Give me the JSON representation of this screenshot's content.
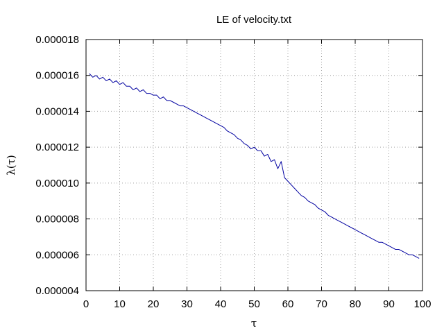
{
  "chart_data": {
    "type": "line",
    "title": "LE of velocity.txt",
    "xlabel": "τ",
    "ylabel": "λ(τ)",
    "xlim": [
      0,
      100
    ],
    "ylim": [
      4e-06,
      1.8e-05
    ],
    "x_ticks": [
      0,
      10,
      20,
      30,
      40,
      50,
      60,
      70,
      80,
      90,
      100
    ],
    "x_tick_labels": [
      "0",
      "10",
      "20",
      "30",
      "40",
      "50",
      "60",
      "70",
      "80",
      "90",
      "100"
    ],
    "y_ticks": [
      4e-06,
      6e-06,
      8e-06,
      1e-05,
      1.2e-05,
      1.4e-05,
      1.6e-05,
      1.8e-05
    ],
    "y_tick_labels": [
      "0.000004",
      "0.000006",
      "0.000008",
      "0.000010",
      "0.000012",
      "0.000014",
      "0.000016",
      "0.000018"
    ],
    "grid": true,
    "legend": "none",
    "series": [
      {
        "color": "#0000a0",
        "x": [
          1,
          2,
          3,
          4,
          5,
          6,
          7,
          8,
          9,
          10,
          11,
          12,
          13,
          14,
          15,
          16,
          17,
          18,
          19,
          20,
          21,
          22,
          23,
          24,
          25,
          26,
          27,
          28,
          29,
          30,
          31,
          32,
          33,
          34,
          35,
          36,
          37,
          38,
          39,
          40,
          41,
          42,
          43,
          44,
          45,
          46,
          47,
          48,
          49,
          50,
          51,
          52,
          53,
          54,
          55,
          56,
          57,
          58,
          59,
          60,
          61,
          62,
          63,
          64,
          65,
          66,
          67,
          68,
          69,
          70,
          71,
          72,
          73,
          74,
          75,
          76,
          77,
          78,
          79,
          80,
          81,
          82,
          83,
          84,
          85,
          86,
          87,
          88,
          89,
          90,
          91,
          92,
          93,
          94,
          95,
          96,
          97,
          98,
          99
        ],
        "y": [
          1.61e-05,
          1.59e-05,
          1.6e-05,
          1.58e-05,
          1.59e-05,
          1.57e-05,
          1.58e-05,
          1.56e-05,
          1.57e-05,
          1.55e-05,
          1.56e-05,
          1.54e-05,
          1.54e-05,
          1.52e-05,
          1.53e-05,
          1.51e-05,
          1.52e-05,
          1.5e-05,
          1.5e-05,
          1.49e-05,
          1.49e-05,
          1.47e-05,
          1.48e-05,
          1.46e-05,
          1.46e-05,
          1.45e-05,
          1.44e-05,
          1.43e-05,
          1.43e-05,
          1.42e-05,
          1.41e-05,
          1.4e-05,
          1.39e-05,
          1.38e-05,
          1.37e-05,
          1.36e-05,
          1.35e-05,
          1.34e-05,
          1.33e-05,
          1.32e-05,
          1.31e-05,
          1.29e-05,
          1.28e-05,
          1.27e-05,
          1.25e-05,
          1.24e-05,
          1.22e-05,
          1.21e-05,
          1.19e-05,
          1.2e-05,
          1.18e-05,
          1.18e-05,
          1.15e-05,
          1.16e-05,
          1.12e-05,
          1.13e-05,
          1.08e-05,
          1.12e-05,
          1.03e-05,
          1.01e-05,
          9.9e-06,
          9.7e-06,
          9.5e-06,
          9.3e-06,
          9.2e-06,
          9e-06,
          8.9e-06,
          8.8e-06,
          8.6e-06,
          8.5e-06,
          8.4e-06,
          8.2e-06,
          8.1e-06,
          8e-06,
          7.9e-06,
          7.8e-06,
          7.7e-06,
          7.6e-06,
          7.5e-06,
          7.4e-06,
          7.3e-06,
          7.2e-06,
          7.1e-06,
          7e-06,
          6.9e-06,
          6.8e-06,
          6.7e-06,
          6.7e-06,
          6.6e-06,
          6.5e-06,
          6.4e-06,
          6.3e-06,
          6.3e-06,
          6.2e-06,
          6.1e-06,
          6e-06,
          6e-06,
          5.9e-06,
          5.8e-06
        ]
      }
    ]
  }
}
